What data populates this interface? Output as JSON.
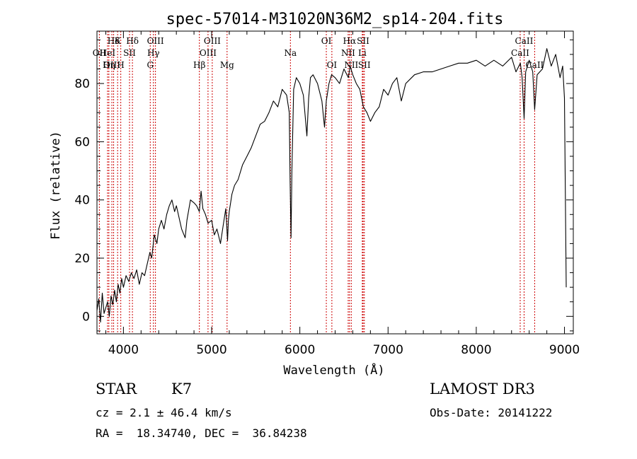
{
  "chart_data": {
    "type": "line",
    "title": "spec-57014-M31020N36M2_sp14-204.fits",
    "xlabel": "Wavelength (Å)",
    "ylabel": "Flux (relative)",
    "xlim": [
      3700,
      9100
    ],
    "ylim": [
      -6,
      98
    ],
    "x_ticks": [
      4000,
      5000,
      6000,
      7000,
      8000,
      9000
    ],
    "y_ticks": [
      0,
      20,
      40,
      60,
      80
    ],
    "line_color": "#000000",
    "marker_color": "#cc0000",
    "series": [
      {
        "name": "flux",
        "x": [
          3700,
          3720,
          3740,
          3760,
          3780,
          3800,
          3820,
          3840,
          3860,
          3880,
          3900,
          3920,
          3940,
          3960,
          3980,
          4000,
          4030,
          4060,
          4090,
          4120,
          4150,
          4180,
          4210,
          4240,
          4270,
          4300,
          4320,
          4350,
          4380,
          4400,
          4430,
          4460,
          4490,
          4520,
          4550,
          4580,
          4600,
          4630,
          4660,
          4700,
          4720,
          4760,
          4800,
          4830,
          4860,
          4880,
          4900,
          4930,
          4960,
          5000,
          5030,
          5060,
          5100,
          5130,
          5160,
          5180,
          5190,
          5200,
          5230,
          5260,
          5300,
          5350,
          5400,
          5450,
          5500,
          5550,
          5600,
          5650,
          5700,
          5750,
          5800,
          5850,
          5880,
          5890,
          5900,
          5910,
          5930,
          5960,
          6000,
          6040,
          6080,
          6100,
          6120,
          6150,
          6200,
          6250,
          6280,
          6300,
          6330,
          6360,
          6400,
          6450,
          6500,
          6550,
          6570,
          6600,
          6640,
          6680,
          6720,
          6760,
          6800,
          6850,
          6900,
          6950,
          7000,
          7050,
          7100,
          7150,
          7200,
          7300,
          7400,
          7500,
          7600,
          7700,
          7800,
          7900,
          8000,
          8100,
          8200,
          8300,
          8400,
          8450,
          8500,
          8520,
          8542,
          8560,
          8600,
          8640,
          8662,
          8690,
          8750,
          8800,
          8850,
          8900,
          8950,
          8980,
          9000,
          9020
        ],
        "y": [
          2,
          6,
          -2,
          8,
          1,
          3,
          5,
          0,
          7,
          4,
          9,
          5,
          11,
          8,
          13,
          10,
          14,
          12,
          15,
          13,
          16,
          11,
          15,
          14,
          18,
          22,
          20,
          28,
          25,
          30,
          33,
          30,
          35,
          38,
          40,
          36,
          38,
          34,
          30,
          27,
          33,
          40,
          39,
          38,
          36,
          43,
          37,
          35,
          32,
          33,
          28,
          30,
          25,
          31,
          37,
          26,
          33,
          36,
          42,
          45,
          47,
          52,
          55,
          58,
          62,
          66,
          67,
          70,
          74,
          72,
          78,
          76,
          70,
          46,
          27,
          50,
          78,
          82,
          80,
          76,
          62,
          75,
          82,
          83,
          80,
          74,
          65,
          74,
          80,
          83,
          82,
          80,
          85,
          82,
          86,
          83,
          80,
          78,
          72,
          70,
          67,
          70,
          72,
          78,
          76,
          80,
          82,
          74,
          80,
          83,
          84,
          84,
          85,
          86,
          87,
          87,
          88,
          86,
          88,
          86,
          89,
          84,
          87,
          82,
          68,
          84,
          88,
          84,
          71,
          83,
          85,
          92,
          86,
          90,
          82,
          86,
          75,
          10
        ]
      }
    ],
    "lines_top": [
      {
        "label": "Hδ",
        "x": 3889
      },
      {
        "label": "K",
        "x": 3934
      },
      {
        "label": "Hδ",
        "x": 4102
      },
      {
        "label": "OIII",
        "x": 4363
      },
      {
        "label": "OIII",
        "x": 5007
      },
      {
        "label": "OI",
        "x": 6300
      },
      {
        "label": "Hα",
        "x": 6563
      },
      {
        "label": "SII",
        "x": 6717
      },
      {
        "label": "CaII",
        "x": 8542
      }
    ],
    "lines_mid": [
      {
        "label": "OII",
        "x": 3727
      },
      {
        "label": "HeI",
        "x": 3820
      },
      {
        "label": "SII",
        "x": 4069
      },
      {
        "label": "Hγ",
        "x": 4340
      },
      {
        "label": "OIII",
        "x": 4959
      },
      {
        "label": "Na",
        "x": 5893
      },
      {
        "label": "NII",
        "x": 6548
      },
      {
        "label": "Li",
        "x": 6708
      },
      {
        "label": "CaII",
        "x": 8498
      }
    ],
    "lines_bot": [
      {
        "label": "OIII",
        "x": 3869
      },
      {
        "label": "Hη",
        "x": 3835
      },
      {
        "label": "H",
        "x": 3970
      },
      {
        "label": "G",
        "x": 4304
      },
      {
        "label": "Hβ",
        "x": 4861
      },
      {
        "label": "Mg",
        "x": 5175
      },
      {
        "label": "OI",
        "x": 6363
      },
      {
        "label": "NII",
        "x": 6583
      },
      {
        "label": "SII",
        "x": 6731
      },
      {
        "label": "CaII",
        "x": 8662
      }
    ]
  },
  "info": {
    "class_label": "STAR",
    "subclass": "K7",
    "survey": "LAMOST DR3",
    "cz": "cz = 2.1 ± 46.4 km/s",
    "obs_date": "Obs-Date: 20141222",
    "coords": "RA =  18.34740, DEC =  36.84238"
  }
}
